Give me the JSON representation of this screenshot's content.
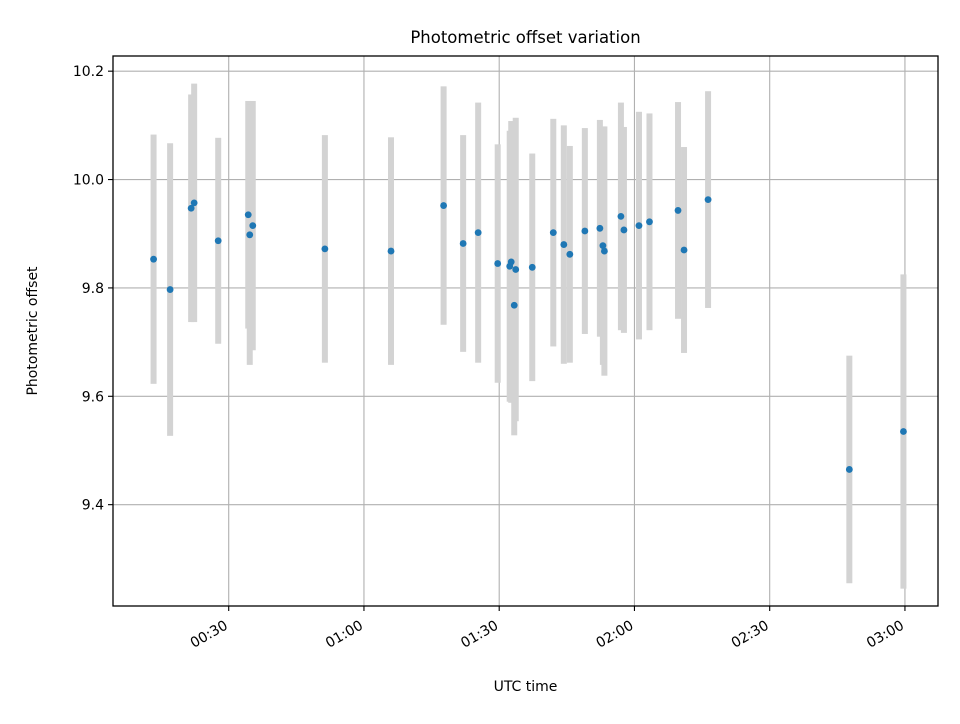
{
  "chart_data": {
    "type": "scatter",
    "title": "Photometric offset variation",
    "xlabel": "UTC time",
    "ylabel": "Photometric offset",
    "x_ticks": [
      "00:30",
      "01:00",
      "01:30",
      "02:00",
      "02:30",
      "03:00"
    ],
    "y_ticks": [
      "9.4",
      "9.6",
      "9.8",
      "10.0",
      "10.2"
    ],
    "xlim": [
      "00:04:20",
      "03:07:20"
    ],
    "ylim": [
      9.213,
      10.228
    ],
    "grid": true,
    "errorbar_color": "#d3d3d3",
    "point_color": "#1f77b4",
    "series": [
      {
        "points": [
          {
            "x": "00:13:20",
            "y": 9.853,
            "err": 0.23
          },
          {
            "x": "00:17:00",
            "y": 9.797,
            "err": 0.27
          },
          {
            "x": "00:21:40",
            "y": 9.947,
            "err": 0.21
          },
          {
            "x": "00:22:20",
            "y": 9.957,
            "err": 0.22
          },
          {
            "x": "00:27:40",
            "y": 9.887,
            "err": 0.19
          },
          {
            "x": "00:34:20",
            "y": 9.935,
            "err": 0.21
          },
          {
            "x": "00:34:40",
            "y": 9.898,
            "err": 0.24
          },
          {
            "x": "00:35:20",
            "y": 9.915,
            "err": 0.23
          },
          {
            "x": "00:51:20",
            "y": 9.872,
            "err": 0.21
          },
          {
            "x": "01:06:00",
            "y": 9.868,
            "err": 0.21
          },
          {
            "x": "01:17:40",
            "y": 9.952,
            "err": 0.22
          },
          {
            "x": "01:22:00",
            "y": 9.882,
            "err": 0.2
          },
          {
            "x": "01:25:20",
            "y": 9.902,
            "err": 0.24
          },
          {
            "x": "01:29:40",
            "y": 9.845,
            "err": 0.22
          },
          {
            "x": "01:32:20",
            "y": 9.84,
            "err": 0.25
          },
          {
            "x": "01:32:40",
            "y": 9.848,
            "err": 0.26
          },
          {
            "x": "01:33:20",
            "y": 9.768,
            "err": 0.24
          },
          {
            "x": "01:33:40",
            "y": 9.834,
            "err": 0.28
          },
          {
            "x": "01:37:20",
            "y": 9.838,
            "err": 0.21
          },
          {
            "x": "01:42:00",
            "y": 9.902,
            "err": 0.21
          },
          {
            "x": "01:44:20",
            "y": 9.88,
            "err": 0.22
          },
          {
            "x": "01:45:40",
            "y": 9.862,
            "err": 0.2
          },
          {
            "x": "01:49:00",
            "y": 9.905,
            "err": 0.19
          },
          {
            "x": "01:52:20",
            "y": 9.91,
            "err": 0.2
          },
          {
            "x": "01:53:00",
            "y": 9.878,
            "err": 0.22
          },
          {
            "x": "01:53:20",
            "y": 9.868,
            "err": 0.23
          },
          {
            "x": "01:57:00",
            "y": 9.932,
            "err": 0.21
          },
          {
            "x": "01:57:40",
            "y": 9.907,
            "err": 0.19
          },
          {
            "x": "02:01:00",
            "y": 9.915,
            "err": 0.21
          },
          {
            "x": "02:03:20",
            "y": 9.922,
            "err": 0.2
          },
          {
            "x": "02:09:40",
            "y": 9.943,
            "err": 0.2
          },
          {
            "x": "02:11:00",
            "y": 9.87,
            "err": 0.19
          },
          {
            "x": "02:16:20",
            "y": 9.963,
            "err": 0.2
          },
          {
            "x": "02:47:40",
            "y": 9.465,
            "err": 0.21
          },
          {
            "x": "02:59:40",
            "y": 9.535,
            "err": 0.29
          }
        ]
      }
    ]
  }
}
